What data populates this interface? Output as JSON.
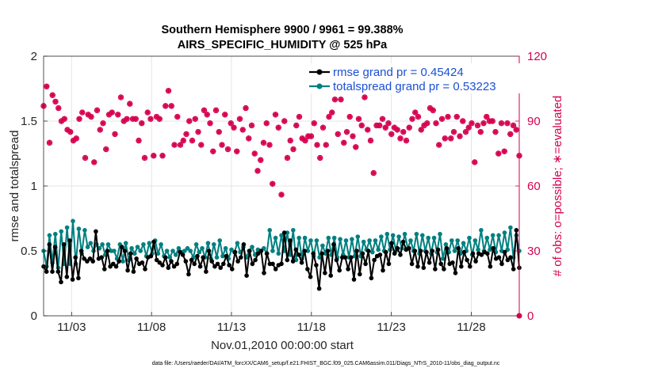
{
  "chart_data": {
    "type": "line",
    "title_line1": "Southern Hemisphere 9900 / 9961 = 99.388%",
    "title_line2": "AIRS_SPECIFIC_HUMIDITY @ 525 hPa",
    "xlabel": "Nov.01,2010 00:00:00 start",
    "ylabel_left": "rmse and totalspread",
    "ylabel_right": "# of obs: o=possible; ∗=evaluated",
    "footer": "data file: /Users/raeder/DAI/ATM_forcXX/CAM6_setup/f.e21.FHIST_BGC.f09_025.CAM6assim.011/Diags_NTrS_2010-11/obs_diag_output.nc",
    "x_ticks": [
      {
        "day": 3,
        "label": "11/03"
      },
      {
        "day": 8,
        "label": "11/08"
      },
      {
        "day": 13,
        "label": "11/13"
      },
      {
        "day": 18,
        "label": "11/18"
      },
      {
        "day": 23,
        "label": "11/23"
      },
      {
        "day": 28,
        "label": "11/28"
      }
    ],
    "xlim_days": [
      1.25,
      31.0
    ],
    "ylim_left": [
      0,
      2
    ],
    "yticks_left": [
      "0",
      "0.5",
      "1",
      "1.5",
      "2"
    ],
    "ylim_right": [
      0,
      120
    ],
    "yticks_right": [
      "0",
      "30",
      "60",
      "90",
      "120"
    ],
    "grid": true,
    "legend_position": "top-right",
    "colors": {
      "rmse": "#000000",
      "spread": "#008080",
      "obs": "#d6004f",
      "legend_text": "#1a4fd6"
    },
    "series": [
      {
        "name": "rmse grand pr = 0.45424",
        "color": "#000000",
        "values": [
          0.38,
          0.34,
          0.55,
          0.34,
          0.53,
          0.34,
          0.26,
          0.55,
          0.3,
          0.58,
          0.28,
          0.45,
          0.29,
          0.5,
          0.44,
          0.42,
          0.44,
          0.42,
          0.65,
          0.44,
          0.45,
          0.36,
          0.5,
          0.38,
          0.4,
          0.38,
          0.42,
          0.53,
          0.5,
          0.35,
          0.48,
          0.34,
          0.44,
          0.4,
          0.41,
          0.36,
          0.45,
          0.46,
          0.57,
          0.43,
          0.41,
          0.39,
          0.45,
          0.37,
          0.42,
          0.38,
          0.4,
          0.49,
          0.47,
          0.42,
          0.32,
          0.43,
          0.4,
          0.46,
          0.38,
          0.45,
          0.34,
          0.5,
          0.42,
          0.38,
          0.4,
          0.37,
          0.4,
          0.46,
          0.39,
          0.36,
          0.49,
          0.42,
          0.45,
          0.55,
          0.31,
          0.5,
          0.4,
          0.43,
          0.48,
          0.5,
          0.33,
          0.48,
          0.4,
          0.4,
          0.36,
          0.39,
          0.4,
          0.64,
          0.43,
          0.58,
          0.42,
          0.51,
          0.47,
          0.41,
          0.5,
          0.36,
          0.3,
          0.48,
          0.39,
          0.21,
          0.48,
          0.33,
          0.5,
          0.31,
          0.55,
          0.43,
          0.35,
          0.45,
          0.45,
          0.36,
          0.45,
          0.28,
          0.5,
          0.32,
          0.48,
          0.4,
          0.5,
          0.29,
          0.43,
          0.46,
          0.47,
          0.35,
          0.49,
          0.4,
          0.56,
          0.48,
          0.52,
          0.47,
          0.57,
          0.51,
          0.52,
          0.4,
          0.5,
          0.38,
          0.5,
          0.37,
          0.49,
          0.41,
          0.5,
          0.36,
          0.51,
          0.4,
          0.36,
          0.52,
          0.4,
          0.41,
          0.33,
          0.52,
          0.38,
          0.49,
          0.43,
          0.38,
          0.48,
          0.42,
          0.48,
          0.47,
          0.49,
          0.48,
          0.38,
          0.52,
          0.44,
          0.45,
          0.4,
          0.49,
          0.43,
          0.45,
          0.36,
          0.66,
          0.37
        ]
      },
      {
        "name": "totalspread grand pr = 0.53223",
        "color": "#008080",
        "values": [
          0.5,
          0.38,
          0.62,
          0.41,
          0.63,
          0.37,
          0.65,
          0.4,
          0.68,
          0.4,
          0.73,
          0.4,
          0.67,
          0.48,
          0.66,
          0.53,
          0.56,
          0.5,
          0.55,
          0.52,
          0.55,
          0.47,
          0.55,
          0.5,
          0.5,
          0.44,
          0.55,
          0.42,
          0.56,
          0.43,
          0.52,
          0.48,
          0.53,
          0.5,
          0.55,
          0.46,
          0.56,
          0.48,
          0.58,
          0.48,
          0.55,
          0.46,
          0.5,
          0.45,
          0.5,
          0.47,
          0.52,
          0.49,
          0.5,
          0.52,
          0.5,
          0.45,
          0.55,
          0.49,
          0.52,
          0.45,
          0.56,
          0.44,
          0.55,
          0.45,
          0.58,
          0.46,
          0.52,
          0.44,
          0.51,
          0.49,
          0.56,
          0.49,
          0.53,
          0.45,
          0.5,
          0.53,
          0.47,
          0.51,
          0.5,
          0.52,
          0.48,
          0.66,
          0.5,
          0.6,
          0.48,
          0.62,
          0.5,
          0.64,
          0.47,
          0.66,
          0.43,
          0.6,
          0.44,
          0.6,
          0.5,
          0.58,
          0.46,
          0.58,
          0.45,
          0.54,
          0.48,
          0.6,
          0.47,
          0.6,
          0.45,
          0.59,
          0.47,
          0.58,
          0.45,
          0.59,
          0.46,
          0.61,
          0.46,
          0.57,
          0.51,
          0.58,
          0.49,
          0.58,
          0.51,
          0.61,
          0.5,
          0.63,
          0.51,
          0.62,
          0.5,
          0.61,
          0.52,
          0.63,
          0.52,
          0.58,
          0.5,
          0.63,
          0.48,
          0.62,
          0.5,
          0.6,
          0.48,
          0.6,
          0.49,
          0.63,
          0.44,
          0.55,
          0.49,
          0.58,
          0.5,
          0.58,
          0.48,
          0.56,
          0.5,
          0.6,
          0.47,
          0.58,
          0.51,
          0.66,
          0.5,
          0.6,
          0.51,
          0.62,
          0.49,
          0.62,
          0.5,
          0.64,
          0.51,
          0.68,
          0.45,
          0.62,
          0.5
        ]
      }
    ],
    "obs_possible": [
      97,
      106,
      80,
      102,
      99,
      96,
      90,
      91,
      86,
      85,
      81,
      82,
      91,
      94,
      73,
      93,
      92,
      71,
      95,
      86,
      89,
      77,
      93,
      94,
      84,
      93,
      101,
      90,
      91,
      98,
      91,
      91,
      81,
      89,
      73,
      94,
      91,
      74,
      92,
      91,
      74,
      97,
      104,
      97,
      79,
      92,
      79,
      81,
      84,
      90,
      81,
      91,
      85,
      79,
      95,
      93,
      89,
      76,
      95,
      85,
      79,
      93,
      77,
      89,
      87,
      76,
      91,
      86,
      96,
      82,
      88,
      75,
      67,
      72,
      80,
      89,
      79,
      61,
      93,
      87,
      56,
      90,
      73,
      81,
      77,
      88,
      92,
      82,
      81,
      83,
      83,
      89,
      79,
      73,
      87,
      79,
      92,
      94,
      100,
      84,
      100,
      80,
      85,
      92,
      83,
      78,
      91,
      88,
      101,
      86,
      81,
      66,
      88,
      88,
      91,
      87,
      89,
      84,
      87,
      86,
      82,
      85,
      81,
      87,
      91,
      94,
      92,
      86,
      88,
      89,
      96,
      95,
      89,
      79,
      91,
      82,
      92,
      82,
      85,
      92,
      83,
      90,
      85,
      87,
      89,
      71,
      88,
      85,
      89,
      92,
      90,
      90,
      85,
      75,
      89,
      76,
      89,
      84,
      88,
      86,
      74
    ]
  }
}
